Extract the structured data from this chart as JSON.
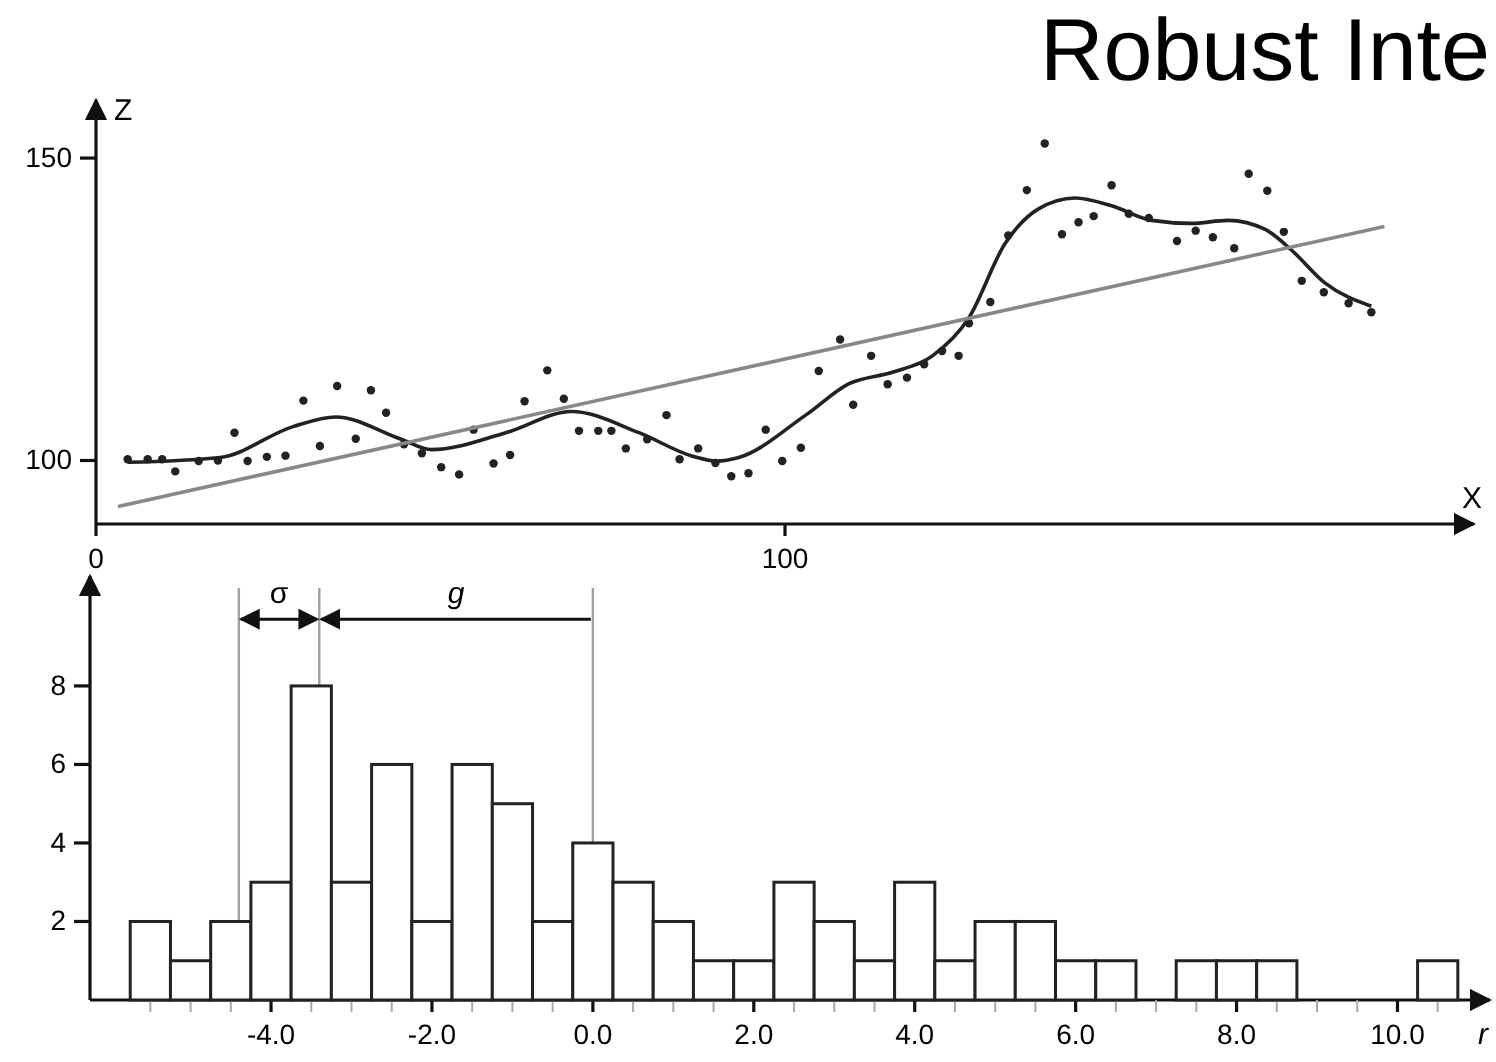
{
  "chart_data": [
    {
      "type": "scatter",
      "title": "Robust Inte",
      "xlabel": "X",
      "ylabel": "Z",
      "xlim": [
        0,
        200
      ],
      "ylim": [
        89.5,
        159.6
      ],
      "xticks": [
        0,
        100
      ],
      "yticks": [
        100,
        150
      ],
      "grid": false,
      "series": [
        {
          "type": "scatter",
          "color": "#222222",
          "marker": "circle",
          "x": [
            4.6,
            7.5,
            9.6,
            11.5,
            14.9,
            17.7,
            20.1,
            22,
            24.8,
            27.5,
            30.1,
            32.5,
            35,
            37.7,
            39.9,
            42.1,
            44.7,
            47.3,
            50.1,
            52.7,
            54.8,
            57.7,
            60.1,
            62.2,
            65.5,
            67.9,
            70.1,
            72.9,
            74.8,
            76.9,
            80,
            82.8,
            84.7,
            87.4,
            89.9,
            92.2,
            94.7,
            97.2,
            99.6,
            102.3,
            104.9,
            108,
            109.9,
            112.5,
            114.9,
            117.7,
            120.2,
            122.8,
            125.2,
            126.7,
            129.8,
            132.4,
            135.1,
            137.7,
            140.2,
            142.6,
            144.8,
            147.4,
            149.9,
            152.8,
            156.9,
            159.6,
            162.1,
            165.2,
            167.3,
            170,
            172.4,
            175,
            178.2,
            181.8,
            185.1
          ],
          "values": [
            100.2,
            100.2,
            100.2,
            98.2,
            99.9,
            100,
            104.6,
            99.9,
            100.6,
            100.8,
            109.9,
            102.4,
            112.3,
            103.6,
            111.6,
            107.9,
            102.7,
            101.2,
            98.9,
            97.7,
            105.1,
            99.5,
            100.9,
            109.8,
            114.9,
            110.2,
            104.9,
            104.9,
            104.9,
            102,
            103.5,
            107.5,
            100.2,
            102,
            99.6,
            97.4,
            97.9,
            105.1,
            99.9,
            102.1,
            114.8,
            120,
            109.2,
            117.3,
            112.6,
            113.7,
            115.9,
            118.1,
            117.3,
            122.7,
            126.2,
            137.2,
            144.7,
            152.4,
            137.4,
            139.4,
            140.4,
            145.5,
            140.8,
            140.1,
            136.3,
            138,
            136.9,
            135.1,
            147.4,
            144.6,
            137.8,
            129.7,
            127.8,
            126,
            124.5
          ]
        },
        {
          "type": "line",
          "color": "#222222",
          "line_style": "solid",
          "x": [
            4.6,
            18,
            28.6,
            34.8,
            44.1,
            48.7,
            59.5,
            69,
            78.8,
            86.6,
            90,
            93.3,
            103,
            109.3,
            115.6,
            121.4,
            126.7,
            131.9,
            136.8,
            142.1,
            147.4,
            153.2,
            159,
            164.3,
            169.7,
            173.5,
            178.3,
            185.1
          ],
          "values": [
            99.7,
            100.5,
            105.6,
            107.2,
            103.6,
            101.8,
            104.6,
            108.1,
            104.6,
            100.7,
            99.9,
            100.5,
            107.5,
            112.7,
            114.6,
            117.3,
            123.6,
            135.8,
            141.6,
            143.4,
            142.1,
            139.7,
            139.2,
            139.7,
            138.2,
            134.8,
            129.4,
            125.5
          ]
        },
        {
          "type": "line",
          "color": "#888888",
          "line_style": "solid",
          "x": [
            3.2,
            187
          ],
          "values": [
            92.4,
            138.7
          ]
        }
      ]
    },
    {
      "type": "histogram",
      "xlabel": "r",
      "xlim": [
        -6.25,
        11.15
      ],
      "ylim": [
        0,
        10.8
      ],
      "yticks": [
        2,
        4,
        6,
        8
      ],
      "grid": false,
      "color": "#ffffff",
      "xticks": [
        {
          "value": -5.5,
          "label": null
        },
        {
          "value": -5,
          "label": null
        },
        {
          "value": -4.5,
          "label": null
        },
        {
          "value": -4,
          "label": "-4.0"
        },
        {
          "value": -3.5,
          "label": null
        },
        {
          "value": -3,
          "label": null
        },
        {
          "value": -2.5,
          "label": null
        },
        {
          "value": -2,
          "label": "-2.0"
        },
        {
          "value": -1.5,
          "label": null
        },
        {
          "value": -1,
          "label": null
        },
        {
          "value": -0.5,
          "label": null
        },
        {
          "value": 0,
          "label": "0.0"
        },
        {
          "value": 0.5,
          "label": null
        },
        {
          "value": 1,
          "label": null
        },
        {
          "value": 1.5,
          "label": null
        },
        {
          "value": 2,
          "label": "2.0"
        },
        {
          "value": 2.5,
          "label": null
        },
        {
          "value": 3,
          "label": null
        },
        {
          "value": 3.5,
          "label": null
        },
        {
          "value": 4,
          "label": "4.0"
        },
        {
          "value": 4.5,
          "label": null
        },
        {
          "value": 5,
          "label": null
        },
        {
          "value": 5.5,
          "label": null
        },
        {
          "value": 6,
          "label": "6.0"
        },
        {
          "value": 6.5,
          "label": null
        },
        {
          "value": 7,
          "label": null
        },
        {
          "value": 7.5,
          "label": null
        },
        {
          "value": 8,
          "label": "8.0"
        },
        {
          "value": 8.5,
          "label": null
        },
        {
          "value": 9,
          "label": null
        },
        {
          "value": 9.5,
          "label": null
        },
        {
          "value": 10,
          "label": "10.0"
        },
        {
          "value": 10.5,
          "label": null
        }
      ],
      "bins": [
        -5.75,
        -5.25,
        -4.75,
        -4.25,
        -3.75,
        -3.25,
        -2.75,
        -2.25,
        -1.75,
        -1.25,
        -0.75,
        -0.25,
        0.25,
        0.75,
        1.25,
        1.75,
        2.25,
        2.75,
        3.25,
        3.75,
        4.25,
        4.75,
        5.25,
        5.75,
        6.25,
        6.75,
        7.25,
        7.75,
        8.25,
        8.75,
        9.25,
        9.75,
        10.25,
        10.75
      ],
      "values": [
        2,
        1,
        2,
        3,
        8,
        3,
        6,
        2,
        6,
        5,
        2,
        4,
        3,
        2,
        1,
        1,
        3,
        2,
        1,
        3,
        1,
        2,
        2,
        1,
        1,
        0,
        1,
        1,
        1,
        0,
        0,
        0,
        1
      ],
      "ref_lines": [
        {
          "axis": "x",
          "value": -4.4,
          "color": "#a0a0a0"
        },
        {
          "axis": "x",
          "value": -3.4,
          "color": "#a0a0a0"
        },
        {
          "axis": "x",
          "value": 0,
          "color": "#a0a0a0"
        }
      ],
      "annotations": [
        {
          "text": "σ",
          "x": -4.4,
          "y": 9.7
        },
        "g"
      ]
    }
  ]
}
